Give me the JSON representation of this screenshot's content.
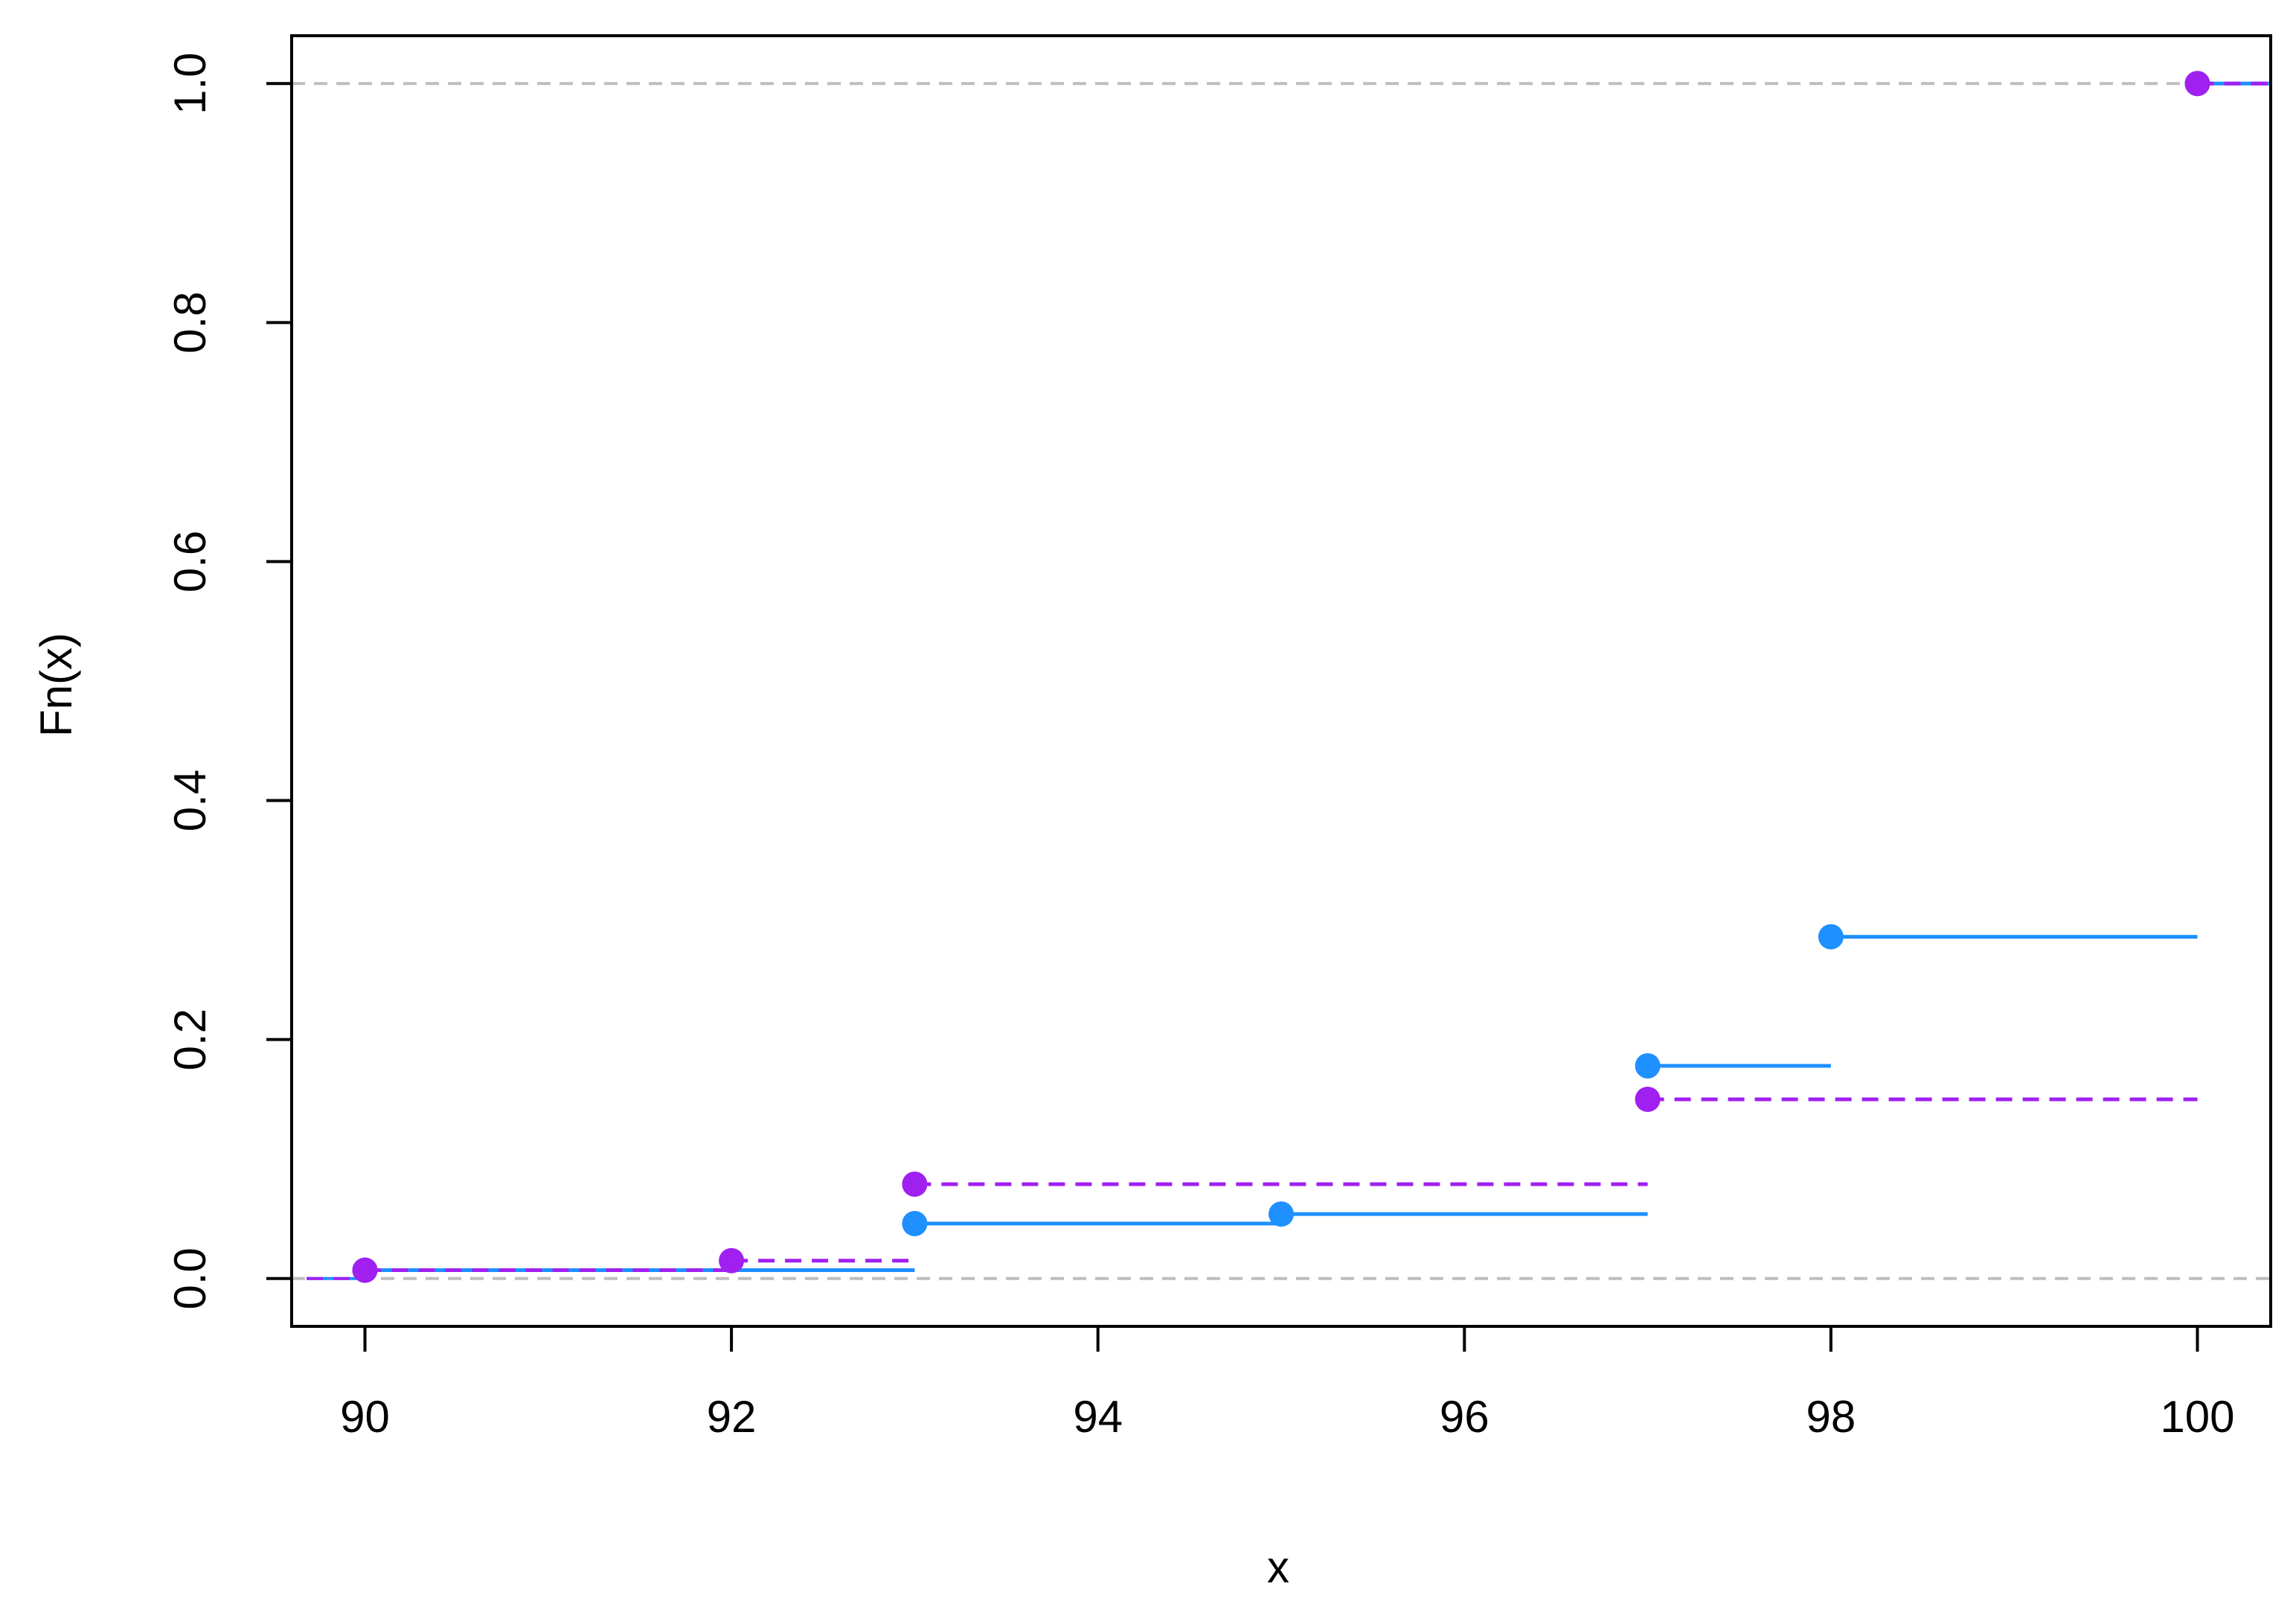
{
  "chart_data": {
    "type": "line",
    "step": true,
    "title": "",
    "xlabel": "x",
    "ylabel": "Fn(x)",
    "xlim": [
      89.6,
      100.4
    ],
    "ylim": [
      -0.04,
      1.04
    ],
    "x_ticks": [
      90,
      92,
      94,
      96,
      98,
      100
    ],
    "x_tick_labels": [
      "90",
      "92",
      "94",
      "96",
      "98",
      "100"
    ],
    "y_ticks": [
      0.0,
      0.2,
      0.4,
      0.6,
      0.8,
      1.0
    ],
    "y_tick_labels": [
      "0.0",
      "0.2",
      "0.4",
      "0.6",
      "0.8",
      "1.0"
    ],
    "reference_lines": [
      0,
      1
    ],
    "grid": false,
    "legend": "none",
    "colors": {
      "blue_series": "#1e90ff",
      "purple_series": "#a020f0",
      "reference": "#bebebe",
      "axes": "#000000"
    },
    "series": [
      {
        "line_style": "solid",
        "color": "#1e90ff",
        "x": [
          90,
          93,
          95,
          97,
          98,
          100
        ],
        "y": [
          0.007,
          0.046,
          0.054,
          0.178,
          0.286,
          1.0
        ]
      },
      {
        "line_style": "dashed",
        "color": "#a020f0",
        "x": [
          90,
          92,
          93,
          97,
          100
        ],
        "y": [
          0.007,
          0.015,
          0.079,
          0.15,
          1.0
        ]
      }
    ]
  }
}
